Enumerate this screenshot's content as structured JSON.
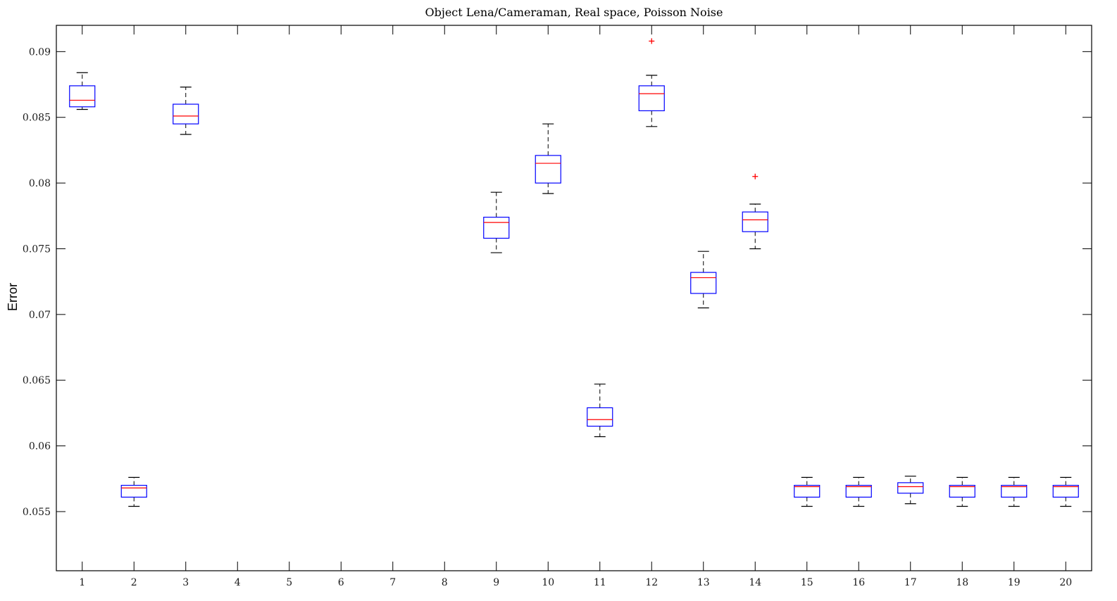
{
  "chart_data": {
    "type": "box",
    "title": "Object Lena/Cameraman, Real space, Poisson Noise",
    "xlabel": "",
    "ylabel": "Error",
    "ylim": [
      0.0505,
      0.092
    ],
    "yticks": [
      0.055,
      0.06,
      0.065,
      0.07,
      0.075,
      0.08,
      0.085,
      0.09
    ],
    "ytick_labels": [
      "0.055",
      "0.06",
      "0.065",
      "0.07",
      "0.075",
      "0.08",
      "0.085",
      "0.09"
    ],
    "categories": [
      "1",
      "2",
      "3",
      "4",
      "5",
      "6",
      "7",
      "8",
      "9",
      "10",
      "11",
      "12",
      "13",
      "14",
      "15",
      "16",
      "17",
      "18",
      "19",
      "20"
    ],
    "grid": false,
    "legend": "none",
    "colors": {
      "box": "#0000ff",
      "median": "#ff0000",
      "whisker": "#000000",
      "outlier": "#ff0000",
      "axes": "#000000"
    },
    "boxes": [
      {
        "category": "1",
        "whisker_low": 0.0856,
        "q1": 0.0858,
        "median": 0.0863,
        "q3": 0.0874,
        "whisker_high": 0.0884,
        "outliers": []
      },
      {
        "category": "2",
        "whisker_low": 0.0554,
        "q1": 0.0561,
        "median": 0.0568,
        "q3": 0.057,
        "whisker_high": 0.0576,
        "outliers": []
      },
      {
        "category": "3",
        "whisker_low": 0.0837,
        "q1": 0.0845,
        "median": 0.0851,
        "q3": 0.086,
        "whisker_high": 0.0873,
        "outliers": []
      },
      {
        "category": "9",
        "whisker_low": 0.0747,
        "q1": 0.0758,
        "median": 0.077,
        "q3": 0.0774,
        "whisker_high": 0.0793,
        "outliers": []
      },
      {
        "category": "10",
        "whisker_low": 0.0792,
        "q1": 0.08,
        "median": 0.0815,
        "q3": 0.0821,
        "whisker_high": 0.0845,
        "outliers": []
      },
      {
        "category": "11",
        "whisker_low": 0.0607,
        "q1": 0.0615,
        "median": 0.062,
        "q3": 0.0629,
        "whisker_high": 0.0647,
        "outliers": []
      },
      {
        "category": "12",
        "whisker_low": 0.0843,
        "q1": 0.0855,
        "median": 0.0868,
        "q3": 0.0874,
        "whisker_high": 0.0882,
        "outliers": [
          0.0908
        ]
      },
      {
        "category": "13",
        "whisker_low": 0.0705,
        "q1": 0.0716,
        "median": 0.0728,
        "q3": 0.0732,
        "whisker_high": 0.0748,
        "outliers": []
      },
      {
        "category": "14",
        "whisker_low": 0.075,
        "q1": 0.0763,
        "median": 0.0772,
        "q3": 0.0778,
        "whisker_high": 0.0784,
        "outliers": [
          0.0805
        ]
      },
      {
        "category": "15",
        "whisker_low": 0.0554,
        "q1": 0.0561,
        "median": 0.0569,
        "q3": 0.057,
        "whisker_high": 0.0576,
        "outliers": []
      },
      {
        "category": "16",
        "whisker_low": 0.0554,
        "q1": 0.0561,
        "median": 0.0569,
        "q3": 0.057,
        "whisker_high": 0.0576,
        "outliers": []
      },
      {
        "category": "17",
        "whisker_low": 0.0556,
        "q1": 0.0564,
        "median": 0.0569,
        "q3": 0.0572,
        "whisker_high": 0.0577,
        "outliers": []
      },
      {
        "category": "18",
        "whisker_low": 0.0554,
        "q1": 0.0561,
        "median": 0.0569,
        "q3": 0.057,
        "whisker_high": 0.0576,
        "outliers": []
      },
      {
        "category": "19",
        "whisker_low": 0.0554,
        "q1": 0.0561,
        "median": 0.0569,
        "q3": 0.057,
        "whisker_high": 0.0576,
        "outliers": []
      },
      {
        "category": "20",
        "whisker_low": 0.0554,
        "q1": 0.0561,
        "median": 0.0569,
        "q3": 0.057,
        "whisker_high": 0.0576,
        "outliers": []
      }
    ]
  }
}
